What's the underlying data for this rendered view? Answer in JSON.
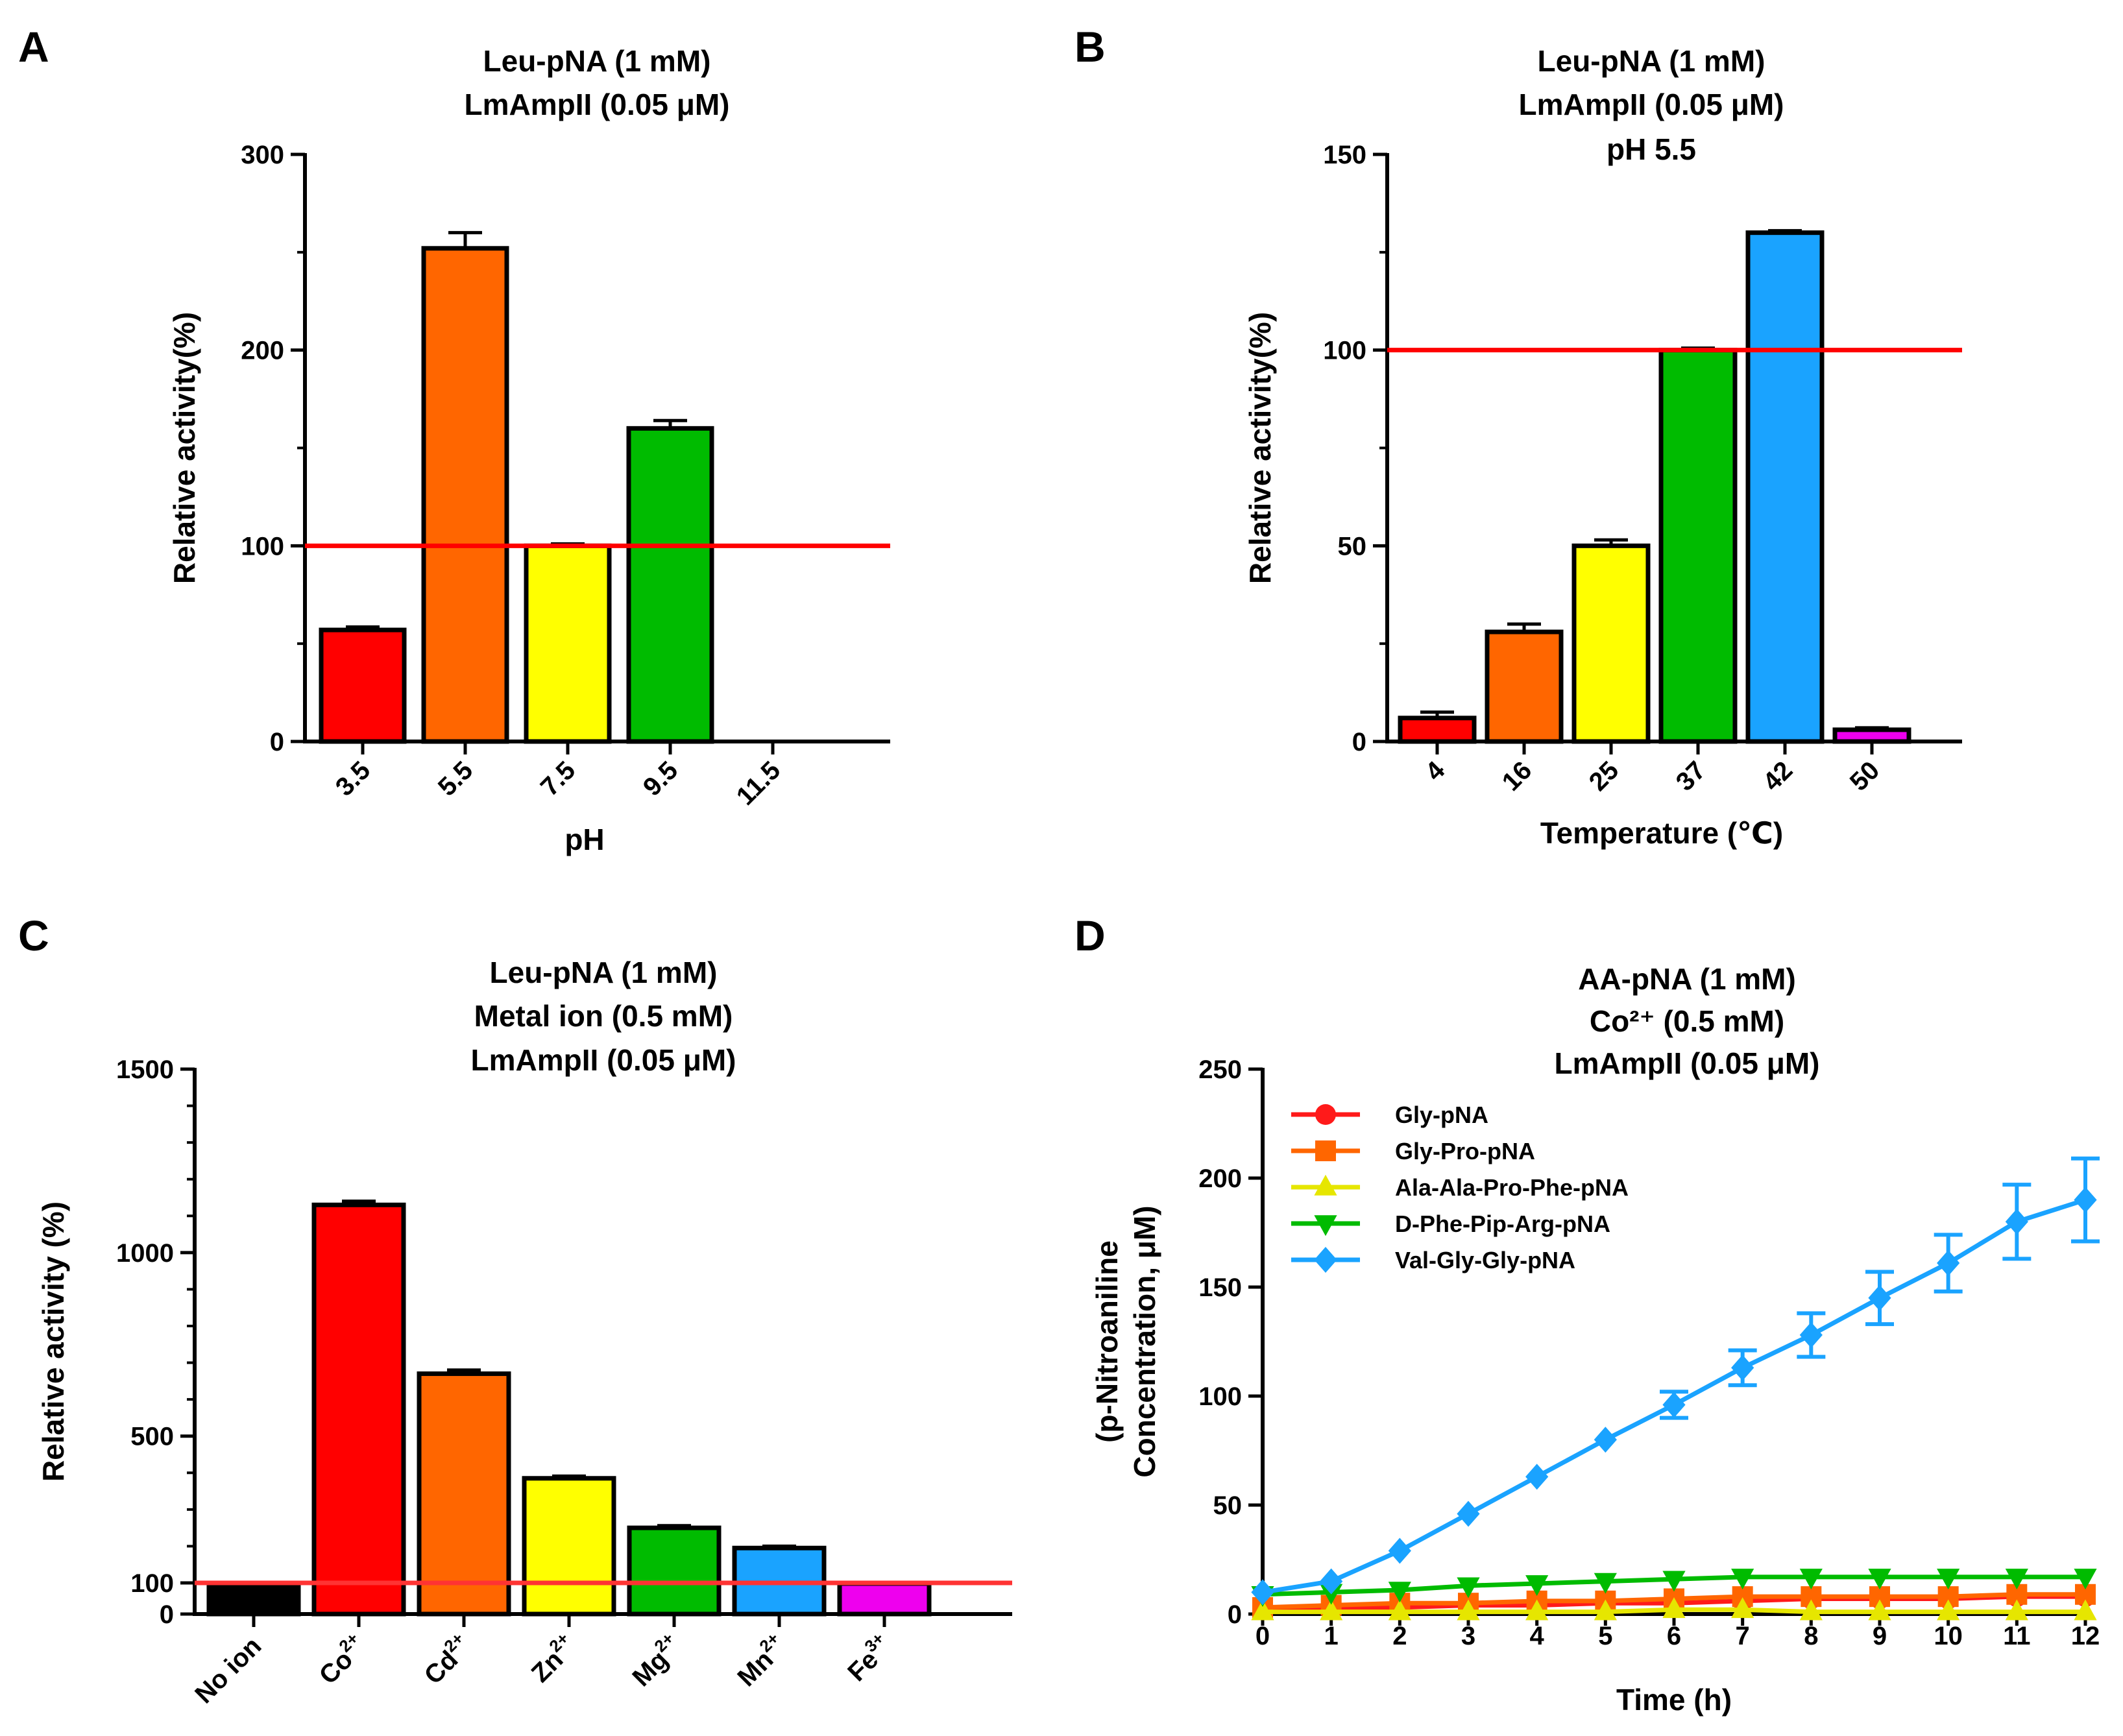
{
  "chart_data": [
    {
      "panel": "A",
      "type": "bar",
      "title_lines": [
        "Leu-pNA (1 mM)",
        "LmAmpII (0.05 μM)"
      ],
      "xlabel": "pH",
      "ylabel": "Relative activity(%)",
      "ylim": [
        0,
        300
      ],
      "yticks": [
        0,
        100,
        200,
        300
      ],
      "categories": [
        "3.5",
        "5.5",
        "7.5",
        "9.5",
        "11.5"
      ],
      "values": [
        57,
        252,
        100,
        160,
        0
      ],
      "errors": [
        1.5,
        8,
        1,
        4,
        0
      ],
      "colors": [
        "#ff0000",
        "#ff6600",
        "#ffff00",
        "#00bb00",
        "#ffffff"
      ],
      "reference_line": 100,
      "reference_color": "#ff0000"
    },
    {
      "panel": "B",
      "type": "bar",
      "title_lines": [
        "Leu-pNA (1 mM)",
        "LmAmpII (0.05 μM)",
        "pH 5.5"
      ],
      "xlabel": "Temperature (℃)",
      "ylabel": "Relative activity(%)",
      "ylim": [
        0,
        150
      ],
      "yticks": [
        0,
        50,
        100,
        150
      ],
      "categories": [
        "4",
        "16",
        "25",
        "37",
        "42",
        "50"
      ],
      "values": [
        6,
        28,
        50,
        100,
        130,
        3
      ],
      "errors": [
        1.5,
        2,
        1.5,
        0.5,
        0.5,
        0.5
      ],
      "colors": [
        "#ff0000",
        "#ff6600",
        "#ffff00",
        "#00bb00",
        "#1aa3ff",
        "#ee00ee"
      ],
      "reference_line": 100,
      "reference_color": "#ff0000"
    },
    {
      "panel": "C",
      "type": "bar",
      "title_lines": [
        "Leu-pNA (1 mM)",
        "Metal ion (0.5 mM)",
        "LmAmpII (0.05 μM)"
      ],
      "xlabel": "",
      "ylabel": "Relative activity (%)",
      "ylim": [
        0,
        1500
      ],
      "yticks": [
        0,
        100,
        500,
        1000,
        1500
      ],
      "categories": [
        {
          "base": "No ion",
          "sup": ""
        },
        {
          "base": "Co",
          "sup": "2+"
        },
        {
          "base": "Cd",
          "sup": "2+"
        },
        {
          "base": "Zn",
          "sup": "2+"
        },
        {
          "base": "Mg",
          "sup": "2+"
        },
        {
          "base": "Mn",
          "sup": "2+"
        },
        {
          "base": "Fe",
          "sup": "3+"
        }
      ],
      "values": [
        100,
        1130,
        670,
        385,
        250,
        195,
        98
      ],
      "errors": [
        0,
        10,
        10,
        6,
        6,
        5,
        0
      ],
      "colors": [
        "#000000",
        "#ff0000",
        "#ff6600",
        "#ffff00",
        "#00bb00",
        "#1aa3ff",
        "#ee00ee"
      ],
      "reference_line": 100,
      "reference_color": "#ff3333"
    },
    {
      "panel": "D",
      "type": "line",
      "title_lines": [
        "AA-pNA (1 mM)",
        "Co²⁺ (0.5 mM)",
        "LmAmpII (0.05 μM)"
      ],
      "xlabel": "Time (h)",
      "ylabel_lines": [
        "(p-Nitroaniline",
        "Concentration, μM)"
      ],
      "xlim": [
        0,
        12
      ],
      "ylim": [
        0,
        250
      ],
      "xticks": [
        0,
        1,
        2,
        3,
        4,
        5,
        6,
        7,
        8,
        9,
        10,
        11,
        12
      ],
      "yticks": [
        0,
        50,
        100,
        150,
        200,
        250
      ],
      "x": [
        0,
        1,
        2,
        3,
        4,
        5,
        6,
        7,
        8,
        9,
        10,
        11,
        12
      ],
      "series": [
        {
          "name": "Gly-pNA",
          "color": "#ff1a1a",
          "marker": "circle",
          "values": [
            2,
            3,
            3,
            4,
            4,
            5,
            5,
            6,
            7,
            7,
            7,
            8,
            8
          ]
        },
        {
          "name": "Gly-Pro-pNA",
          "color": "#ff6600",
          "marker": "square",
          "values": [
            3,
            4,
            5,
            5,
            6,
            6,
            7,
            8,
            8,
            8,
            8,
            9,
            9
          ]
        },
        {
          "name": "Ala-Ala-Pro-Phe-pNA",
          "color": "#e6e600",
          "marker": "triangle-up",
          "values": [
            1,
            1,
            1,
            1,
            1,
            1,
            2,
            2,
            1,
            1,
            1,
            1,
            1
          ]
        },
        {
          "name": "D-Phe-Pip-Arg-pNA",
          "color": "#00bb00",
          "marker": "triangle-down",
          "values": [
            9,
            10,
            11,
            13,
            14,
            15,
            16,
            17,
            17,
            17,
            17,
            17,
            17
          ]
        },
        {
          "name": "Val-Gly-Gly-pNA",
          "color": "#1aa3ff",
          "marker": "diamond",
          "values": [
            10,
            15,
            29,
            46,
            63,
            80,
            96,
            113,
            128,
            145,
            161,
            180,
            190
          ],
          "errors": [
            0,
            0,
            0,
            0,
            0,
            0,
            6,
            8,
            10,
            12,
            13,
            17,
            19
          ]
        }
      ]
    }
  ]
}
